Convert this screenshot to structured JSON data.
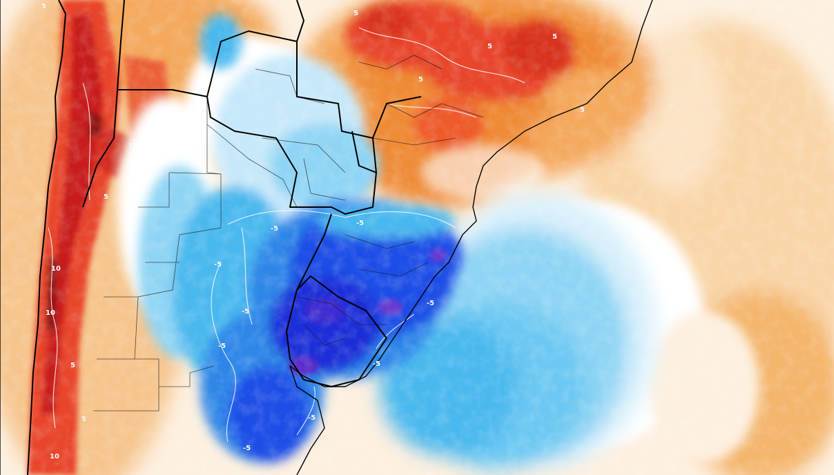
{
  "map": {
    "kind": "temperature anomaly map",
    "region": "Southern South America",
    "colors": {
      "land_base": "#f6c58d",
      "ocean_base": "#fdf0e0",
      "warm_light": "#fbe3c4",
      "warm_mid": "#f4a95d",
      "warm_orange": "#ef8a34",
      "warm_red": "#e8452a",
      "warm_deep": "#c81f1f",
      "warm_darkred": "#8e1313",
      "neutral": "#ffffff",
      "cool_pale": "#d9f0fb",
      "cool_light": "#8ed4f4",
      "cool_sky": "#4ab8ee",
      "cool_mid": "#2e86e8",
      "cool_blue": "#1f4de6",
      "cool_deep": "#1a2fd8",
      "cool_violet": "#5a2bc9",
      "borders": "#000000",
      "contours": "#ffffff"
    },
    "contour_labels": [
      {
        "id": "lbl-north-andes-5",
        "text": "5"
      },
      {
        "id": "lbl-brazil-5a",
        "text": "5"
      },
      {
        "id": "lbl-brazil-5b",
        "text": "5"
      },
      {
        "id": "lbl-brazil-5c",
        "text": "5"
      },
      {
        "id": "lbl-brazil-5d",
        "text": "5"
      },
      {
        "id": "lbl-brazil-5e",
        "text": "5"
      },
      {
        "id": "lbl-andes-5a",
        "text": "5"
      },
      {
        "id": "lbl-andes-5b",
        "text": "5"
      },
      {
        "id": "lbl-andes-10a",
        "text": "10"
      },
      {
        "id": "lbl-andes-10b",
        "text": "10"
      },
      {
        "id": "lbl-andes-5c",
        "text": "5"
      },
      {
        "id": "lbl-andes-5d",
        "text": "5"
      },
      {
        "id": "lbl-andes-10c",
        "text": "10"
      },
      {
        "id": "lbl-arg-m5a",
        "text": "-5"
      },
      {
        "id": "lbl-arg-m5b",
        "text": "-5"
      },
      {
        "id": "lbl-arg-m5c",
        "text": "-5"
      },
      {
        "id": "lbl-uru-m5a",
        "text": "-5"
      },
      {
        "id": "lbl-uru-m5b",
        "text": "-5"
      },
      {
        "id": "lbl-rs-m5",
        "text": "-5"
      },
      {
        "id": "lbl-buenos-m5",
        "text": "-5"
      },
      {
        "id": "lbl-south-m5",
        "text": "-5"
      },
      {
        "id": "lbl-south-m5b",
        "text": "-5"
      }
    ]
  }
}
